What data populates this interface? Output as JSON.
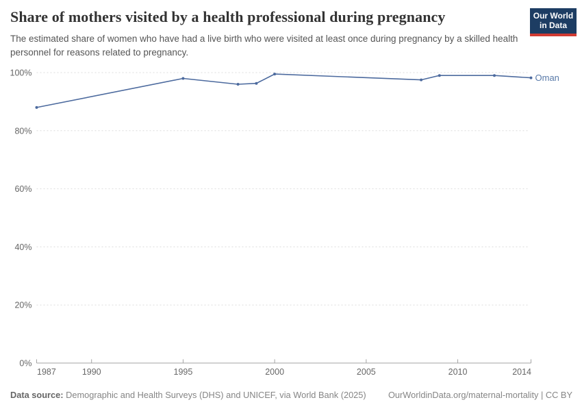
{
  "header": {
    "title": "Share of mothers visited by a health professional during pregnancy",
    "subtitle": "The estimated share of women who have had a live birth who were visited at least once during pregnancy by a skilled health personnel for reasons related to pregnancy.",
    "logo": {
      "line1": "Our World",
      "line2": "in Data"
    }
  },
  "chart_data": {
    "type": "line",
    "title": "Share of mothers visited by a health professional during pregnancy",
    "xlabel": "",
    "ylabel": "",
    "xlim": [
      1987,
      2014
    ],
    "ylim": [
      0,
      100
    ],
    "x_ticks": [
      1987,
      1990,
      1995,
      2000,
      2005,
      2010,
      2014
    ],
    "y_ticks": [
      0,
      20,
      40,
      60,
      80,
      100
    ],
    "y_tick_suffix": "%",
    "grid": "horizontal-dashed",
    "legend_position": "end-of-line",
    "series": [
      {
        "name": "Oman",
        "color": "#4c6a9e",
        "label_color": "#5879a8",
        "points": [
          {
            "year": 1987,
            "value": 88
          },
          {
            "year": 1995,
            "value": 98
          },
          {
            "year": 1998,
            "value": 96
          },
          {
            "year": 1999,
            "value": 96.3
          },
          {
            "year": 2000,
            "value": 99.5
          },
          {
            "year": 2008,
            "value": 97.5
          },
          {
            "year": 2009,
            "value": 99
          },
          {
            "year": 2012,
            "value": 99
          },
          {
            "year": 2014,
            "value": 98.2
          }
        ]
      }
    ]
  },
  "colors": {
    "line": "#4c6a9e",
    "entity_label": "#5879a8",
    "gridline": "#dcdcdc",
    "axis": "#a3a3a3",
    "tick_label": "#666666",
    "logo_navy": "#1d3d63",
    "logo_red": "#d13b32"
  },
  "footer": {
    "datasource_label": "Data source:",
    "datasource_text": " Demographic and Health Surveys (DHS) and UNICEF, via World Bank (2025)",
    "link_text": "OurWorldinData.org/maternal-mortality | CC BY"
  }
}
